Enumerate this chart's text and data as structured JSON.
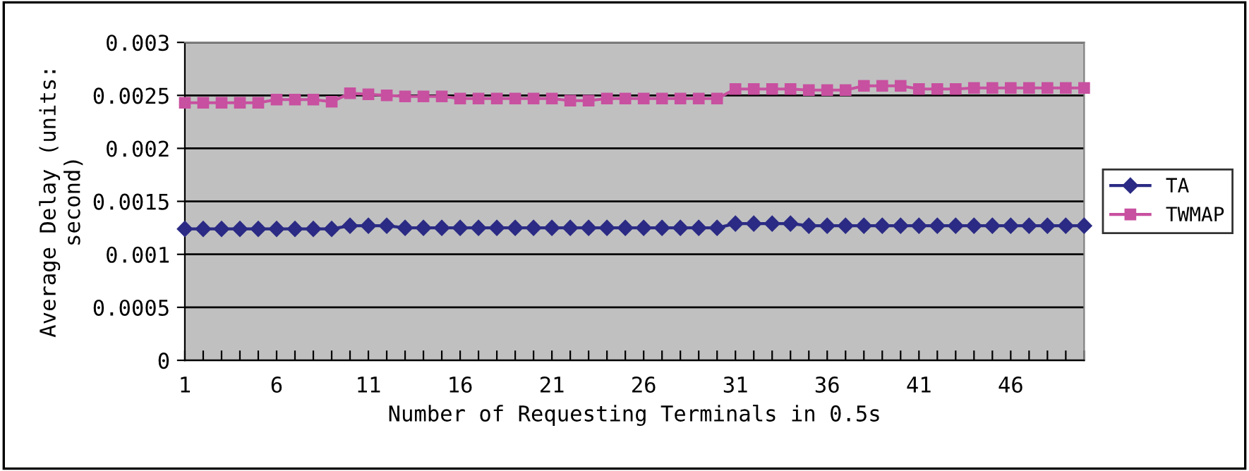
{
  "chart_data": {
    "type": "line",
    "xlabel": "Number of Requesting Terminals in 0.5s",
    "ylabel": "Average Delay (units:\nsecond)",
    "categories": [
      "1",
      null,
      null,
      null,
      null,
      "6",
      null,
      null,
      null,
      null,
      "11",
      null,
      null,
      null,
      null,
      "16",
      null,
      null,
      null,
      null,
      "21",
      null,
      null,
      null,
      null,
      "26",
      null,
      null,
      null,
      null,
      "31",
      null,
      null,
      null,
      null,
      "36",
      null,
      null,
      null,
      null,
      "41",
      null,
      null,
      null,
      null,
      "46",
      null,
      null,
      null,
      null
    ],
    "series": [
      {
        "name": "TA",
        "color": "#2b2b85",
        "marker": "diamond",
        "values": [
          0.00124,
          0.00124,
          0.00124,
          0.00124,
          0.00124,
          0.00124,
          0.00124,
          0.00124,
          0.00124,
          0.00127,
          0.00127,
          0.00127,
          0.00125,
          0.00125,
          0.00125,
          0.00125,
          0.00125,
          0.00125,
          0.00125,
          0.00125,
          0.00125,
          0.00125,
          0.00125,
          0.00125,
          0.00125,
          0.00125,
          0.00125,
          0.00125,
          0.00125,
          0.00125,
          0.00129,
          0.00129,
          0.00129,
          0.00129,
          0.00127,
          0.00127,
          0.00127,
          0.00127,
          0.00127,
          0.00127,
          0.00127,
          0.00127,
          0.00127,
          0.00127,
          0.00127,
          0.00127,
          0.00127,
          0.00127,
          0.00127,
          0.00127
        ]
      },
      {
        "name": "TWMAP",
        "color": "#c850a0",
        "marker": "square",
        "values": [
          0.00243,
          0.00243,
          0.00243,
          0.00243,
          0.00243,
          0.00246,
          0.00246,
          0.00246,
          0.00244,
          0.00252,
          0.00251,
          0.0025,
          0.00249,
          0.00249,
          0.00249,
          0.00247,
          0.00247,
          0.00247,
          0.00247,
          0.00247,
          0.00247,
          0.00245,
          0.00245,
          0.00247,
          0.00247,
          0.00247,
          0.00247,
          0.00247,
          0.00247,
          0.00247,
          0.00256,
          0.00256,
          0.00256,
          0.00256,
          0.00255,
          0.00255,
          0.00255,
          0.00259,
          0.00259,
          0.00259,
          0.00256,
          0.00256,
          0.00256,
          0.00257,
          0.00257,
          0.00257,
          0.00257,
          0.00257,
          0.00257,
          0.00257
        ]
      }
    ],
    "ylim": [
      0,
      0.003
    ],
    "yticks": [
      0,
      {
        "value": 0.0005,
        "label": "0.0005"
      },
      0.001,
      {
        "value": 0.0015,
        "label": "0.0015"
      },
      0.002,
      {
        "value": 0.0025,
        "label": "0.0025"
      },
      0.003
    ],
    "grid": "y",
    "legend": "right",
    "line_style": "solid"
  }
}
